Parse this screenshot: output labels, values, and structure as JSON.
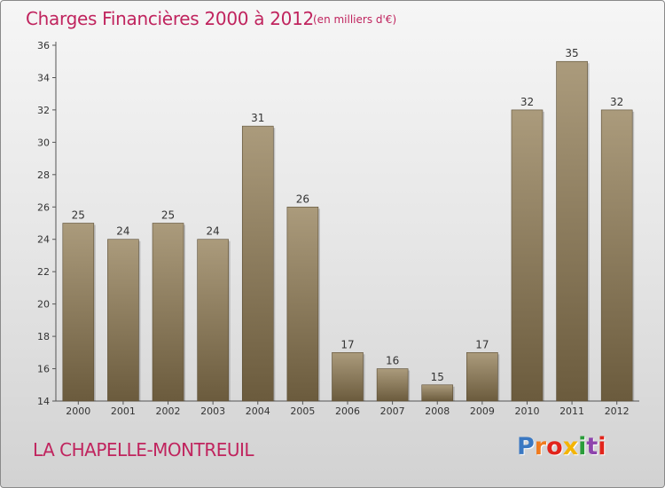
{
  "title": "Charges Financières 2000 à 2012",
  "subtitle": "(en milliers d'€)",
  "commune": "LA CHAPELLE-MONTREUIL",
  "logo": {
    "text": "Proxiti",
    "letter_colors": [
      "#3a78c2",
      "#f07b1e",
      "#e2241b",
      "#f4b400",
      "#2a9d3a",
      "#8e44ad",
      "#e2241b"
    ]
  },
  "colors": {
    "accent": "#c0245e",
    "bar_top": "#ab9b7c",
    "bar_bottom": "#6b5b3d",
    "axis": "#555555"
  },
  "chart_data": {
    "type": "bar",
    "categories": [
      "2000",
      "2001",
      "2002",
      "2003",
      "2004",
      "2005",
      "2006",
      "2007",
      "2008",
      "2009",
      "2010",
      "2011",
      "2012"
    ],
    "values": [
      25,
      24,
      25,
      24,
      31,
      26,
      17,
      16,
      15,
      17,
      32,
      35,
      32
    ],
    "data_labels": [
      "25",
      "24",
      "25",
      "24",
      "31",
      "26",
      "17",
      "16",
      "15",
      "17",
      "32",
      "35",
      "32"
    ],
    "yticks": [
      "14",
      "16",
      "18",
      "20",
      "22",
      "24",
      "26",
      "28",
      "30",
      "32",
      "34",
      "36"
    ],
    "ylim": [
      14,
      36
    ],
    "grid": false,
    "xlabel": "",
    "ylabel": ""
  }
}
